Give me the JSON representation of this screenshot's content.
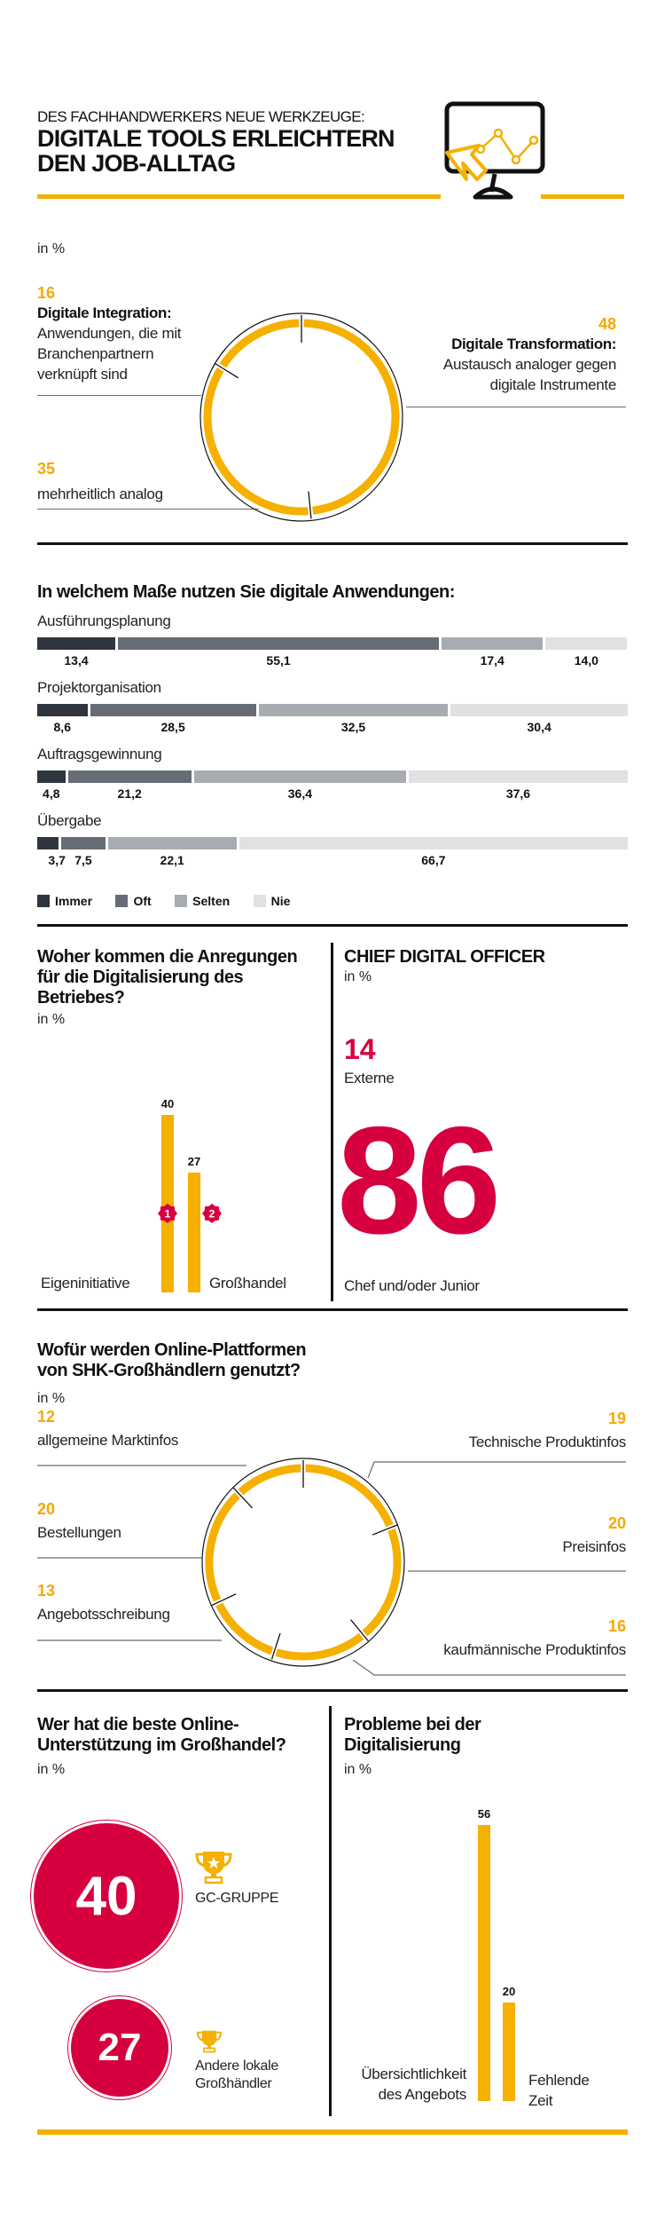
{
  "header": {
    "kicker": "DES FACHHANDWERKERS NEUE WERKZEUGE:",
    "title_line1": "DIGITALE TOOLS ERLEICHTERN",
    "title_line2": "DEN JOB-ALLTAG",
    "icon": "monitor-chart-cursor-icon"
  },
  "colors": {
    "accent_yellow": "#f5b000",
    "crimson": "#d6003f",
    "immer": "#2f3640",
    "oft": "#666d76",
    "selten": "#a8acb2",
    "nie": "#e0e1e3"
  },
  "section1": {
    "unit": "in %",
    "items": [
      {
        "value": "16",
        "title": "Digitale Integration:",
        "desc_lines": [
          "Anwendungen, die mit",
          "Branchenpartnern",
          "verknüpft sind"
        ]
      },
      {
        "value": "48",
        "title": "Digitale Transformation:",
        "desc_lines": [
          "Austausch analoger gegen",
          "digitale Instrumente"
        ]
      },
      {
        "value": "35",
        "title": "",
        "desc_lines": [
          "mehrheitlich analog"
        ]
      }
    ]
  },
  "section2": {
    "title": "In welchem Maße nutzen Sie digitale Anwendungen:",
    "legend": [
      "Immer",
      "Oft",
      "Selten",
      "Nie"
    ]
  },
  "section3": {
    "title_lines": [
      "Woher kommen die Anregungen",
      "für die Digitalisierung des",
      "Betriebes?"
    ],
    "unit": "in %",
    "badges": [
      "1",
      "2"
    ]
  },
  "section4": {
    "title": "CHIEF DIGITAL OFFICER",
    "unit": "in %",
    "small_value": "14",
    "small_label": "Externe",
    "big_value": "86",
    "big_label": "Chef und/oder Junior"
  },
  "section5": {
    "title_lines": [
      "Wofür werden Online-Plattformen",
      "von SHK-Großhändlern genutzt?"
    ],
    "unit": "in %"
  },
  "section6": {
    "title_lines": [
      "Wer hat die beste Online-",
      "Unterstützung im Großhandel?"
    ],
    "unit": "in %",
    "items": [
      {
        "value": "40",
        "label_lines": [
          "GC-GRUPPE"
        ]
      },
      {
        "value": "27",
        "label_lines": [
          "Andere lokale",
          "Großhändler"
        ]
      }
    ]
  },
  "section7": {
    "title_lines": [
      "Probleme bei der",
      "Digitalisierung"
    ],
    "unit": "in %"
  },
  "chart_data": [
    {
      "type": "pie",
      "variant": "ring",
      "unit": "%",
      "categories": [
        "Digitale Transformation",
        "mehrheitlich analog",
        "Digitale Integration"
      ],
      "values": [
        48,
        35,
        16
      ]
    },
    {
      "type": "bar",
      "variant": "stacked-horizontal-100",
      "title": "In welchem Maße nutzen Sie digitale Anwendungen:",
      "categories": [
        "Ausführungsplanung",
        "Projektorganisation",
        "Auftragsgewinnung",
        "Übergabe"
      ],
      "series": [
        {
          "name": "Immer",
          "values": [
            13.4,
            8.6,
            4.8,
            3.7
          ],
          "labels": [
            "13,4",
            "8,6",
            "4,8",
            "3,7"
          ]
        },
        {
          "name": "Oft",
          "values": [
            55.1,
            28.5,
            21.2,
            7.5
          ],
          "labels": [
            "55,1",
            "28,5",
            "21,2",
            "7,5"
          ]
        },
        {
          "name": "Selten",
          "values": [
            17.4,
            32.5,
            36.4,
            22.1
          ],
          "labels": [
            "17,4",
            "32,5",
            "36,4",
            "22,1"
          ]
        },
        {
          "name": "Nie",
          "values": [
            14.0,
            30.4,
            37.6,
            66.7
          ],
          "labels": [
            "14,0",
            "30,4",
            "37,6",
            "66,7"
          ]
        }
      ],
      "legend": "bottom-left"
    },
    {
      "type": "bar",
      "title": "Woher kommen die Anregungen für die Digitalisierung des Betriebes?",
      "ylabel": "in %",
      "categories": [
        "Eigeninitiative",
        "Großhandel"
      ],
      "values": [
        40,
        27
      ],
      "labels": [
        "40",
        "27"
      ]
    },
    {
      "type": "pie",
      "variant": "ring",
      "title": "Wofür werden Online-Plattformen von SHK-Großhändlern genutzt?",
      "unit": "%",
      "categories": [
        "Technische Produktinfos",
        "Preisinfos",
        "kaufmännische Produktinfos",
        "Angebotsschreibung",
        "Bestellungen",
        "allgemeine Marktinfos"
      ],
      "values": [
        19,
        20,
        16,
        13,
        20,
        12
      ]
    },
    {
      "type": "bar",
      "title": "Probleme bei der Digitalisierung",
      "ylabel": "in %",
      "categories": [
        "Übersichtlichkeit des Angebots",
        "Fehlende Zeit"
      ],
      "category_lines": [
        [
          "Übersichtlichkeit",
          "des Angebots"
        ],
        [
          "Fehlende",
          "Zeit"
        ]
      ],
      "values": [
        56,
        20
      ],
      "labels": [
        "56",
        "20"
      ]
    }
  ]
}
